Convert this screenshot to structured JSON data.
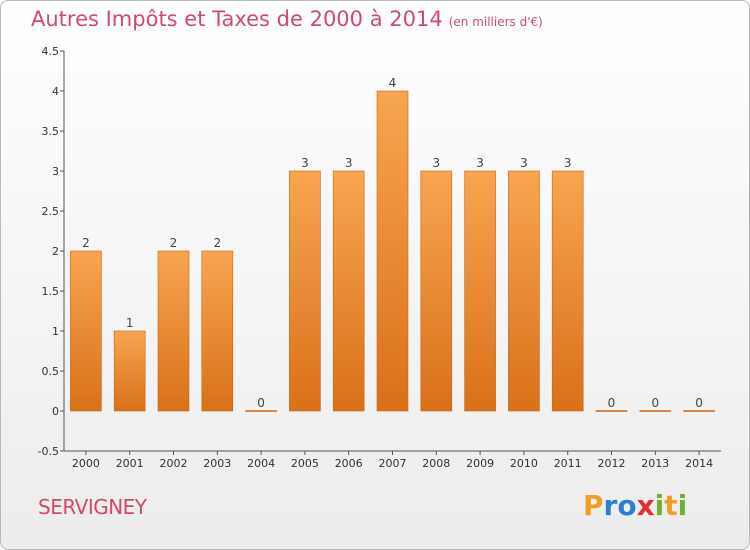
{
  "header": {
    "title": "Autres Impôts et Taxes de 2000 à 2014",
    "unit": "(en milliers d'€)"
  },
  "footer": {
    "city": "SERVIGNEY",
    "logo": {
      "letters": [
        "P",
        "r",
        "o",
        "x",
        "i",
        "t",
        "i"
      ],
      "colors": [
        "#f0a020",
        "#2a7fd0",
        "#2a7fd0",
        "#e03030",
        "#70b030",
        "#f0a020",
        "#70b030"
      ]
    }
  },
  "chart_data": {
    "type": "bar",
    "title": "Autres Impôts et Taxes de 2000 à 2014",
    "unit": "(en milliers d'€)",
    "categories": [
      "2000",
      "2001",
      "2002",
      "2003",
      "2004",
      "2005",
      "2006",
      "2007",
      "2008",
      "2009",
      "2010",
      "2011",
      "2012",
      "2013",
      "2014"
    ],
    "values": [
      2,
      1,
      2,
      2,
      0,
      3,
      3,
      4,
      3,
      3,
      3,
      3,
      0,
      0,
      0
    ],
    "ylim": [
      -0.5,
      4.5
    ],
    "yticks": [
      -0.5,
      0,
      0.5,
      1,
      1.5,
      2,
      2.5,
      3,
      3.5,
      4,
      4.5
    ],
    "ytick_labels": [
      "-0.5",
      "0",
      "0.5",
      "1",
      "1.5",
      "2",
      "2.5",
      "3",
      "3.5",
      "4",
      "4.5"
    ],
    "bar_color": "#f08a30",
    "grid": false,
    "legend": "none"
  }
}
